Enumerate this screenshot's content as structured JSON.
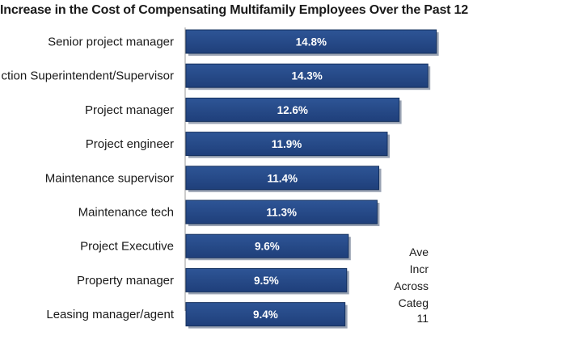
{
  "chart_data": {
    "type": "bar",
    "orientation": "horizontal",
    "title": "Increase in the Cost of Compensating Multifamily Employees Over the Past 12",
    "categories": [
      "Senior project manager",
      "ction Superintendent/Supervisor",
      "Project manager",
      "Project engineer",
      "Maintenance supervisor",
      "Maintenance tech",
      "Project Executive",
      "Property manager",
      "Leasing manager/agent"
    ],
    "values": [
      14.8,
      14.3,
      12.6,
      11.9,
      11.4,
      11.3,
      9.6,
      9.5,
      9.4
    ],
    "value_labels": [
      "14.8%",
      "14.3%",
      "12.6%",
      "11.9%",
      "11.4%",
      "11.3%",
      "9.6%",
      "9.5%",
      "9.4%"
    ],
    "xlabel": "",
    "ylabel": "",
    "xlim": [
      0,
      15.2
    ],
    "grid": false,
    "bar_color": "#1f3f7a",
    "bar_color_light": "#2e5596",
    "annotation_lines": [
      "Ave",
      "Incr",
      "Across",
      "Categ",
      "11"
    ]
  }
}
